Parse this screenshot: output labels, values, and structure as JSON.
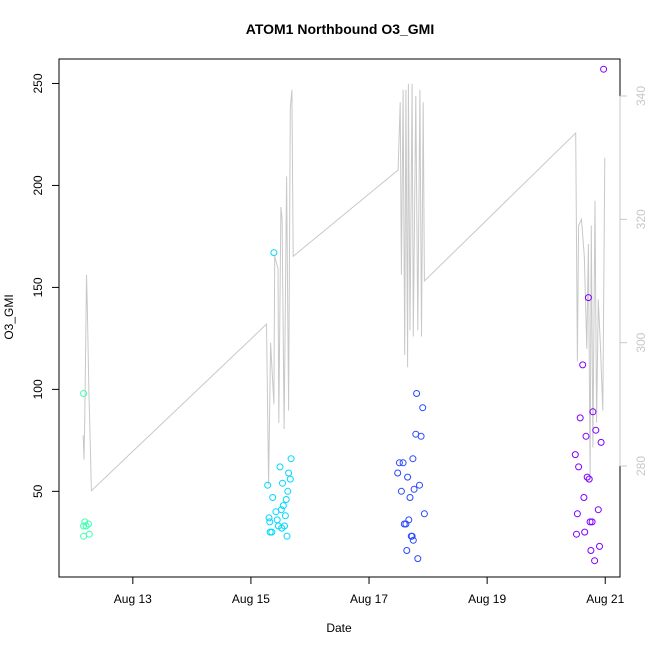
{
  "chart_data": {
    "type": "scatter",
    "title": "ATOM1 Northbound O3_GMI",
    "xlabel": "Date",
    "ylabel": "O3_GMI",
    "xlim": [
      "2016-08-11 18:00",
      "2016-08-21 06:00"
    ],
    "ylim": [
      8,
      262
    ],
    "x_ticks": [
      {
        "date": "2016-08-13",
        "label": "Aug 13"
      },
      {
        "date": "2016-08-15",
        "label": "Aug 15"
      },
      {
        "date": "2016-08-17",
        "label": "Aug 17"
      },
      {
        "date": "2016-08-19",
        "label": "Aug 19"
      },
      {
        "date": "2016-08-21",
        "label": "Aug 21"
      }
    ],
    "y_ticks": [
      50,
      100,
      150,
      200,
      250
    ],
    "y2lim": [
      262,
      346
    ],
    "y2_ticks": [
      280,
      300,
      320,
      340
    ],
    "y2_color": "#c8c8c8",
    "line_color": "#c8c8c8",
    "point_colors": [
      "#40ffb0",
      "#00d8ff",
      "#2848ff",
      "#8000ff"
    ],
    "line_series": [
      [
        "2016-08-12 03:50",
        285
      ],
      [
        "2016-08-12 04:10",
        281
      ],
      [
        "2016-08-12 04:30",
        288
      ],
      [
        "2016-08-12 04:50",
        300
      ],
      [
        "2016-08-12 05:10",
        311
      ],
      [
        "2016-08-12 05:30",
        306
      ],
      [
        "2016-08-12 06:10",
        292
      ],
      [
        "2016-08-12 06:40",
        284
      ],
      [
        "2016-08-12 07:10",
        276
      ],
      [
        "2016-08-15 06:20",
        303
      ],
      [
        "2016-08-15 07:10",
        277
      ],
      [
        "2016-08-15 08:00",
        300
      ],
      [
        "2016-08-15 09:20",
        290
      ],
      [
        "2016-08-15 09:40",
        314
      ],
      [
        "2016-08-15 11:00",
        312
      ],
      [
        "2016-08-15 11:20",
        287
      ],
      [
        "2016-08-15 12:10",
        322
      ],
      [
        "2016-08-15 12:40",
        320
      ],
      [
        "2016-08-15 13:30",
        286
      ],
      [
        "2016-08-15 14:30",
        327
      ],
      [
        "2016-08-15 15:20",
        289
      ],
      [
        "2016-08-15 16:00",
        338
      ],
      [
        "2016-08-15 16:40",
        341
      ],
      [
        "2016-08-15 17:10",
        314
      ],
      [
        "2016-08-17 11:50",
        328
      ],
      [
        "2016-08-17 12:40",
        339
      ],
      [
        "2016-08-17 13:10",
        311
      ],
      [
        "2016-08-17 13:50",
        341
      ],
      [
        "2016-08-17 14:30",
        298
      ],
      [
        "2016-08-17 15:00",
        341
      ],
      [
        "2016-08-17 15:40",
        296
      ],
      [
        "2016-08-17 16:00",
        342
      ],
      [
        "2016-08-17 16:40",
        302
      ],
      [
        "2016-08-17 17:30",
        342
      ],
      [
        "2016-08-17 18:00",
        301
      ],
      [
        "2016-08-17 19:00",
        340
      ],
      [
        "2016-08-17 19:50",
        302
      ],
      [
        "2016-08-17 20:40",
        341
      ],
      [
        "2016-08-17 21:20",
        301
      ],
      [
        "2016-08-17 22:00",
        339
      ],
      [
        "2016-08-17 22:30",
        310
      ],
      [
        "2016-08-20 12:00",
        334
      ],
      [
        "2016-08-20 12:40",
        297
      ],
      [
        "2016-08-20 13:10",
        319
      ],
      [
        "2016-08-20 14:20",
        320
      ],
      [
        "2016-08-20 15:30",
        314
      ],
      [
        "2016-08-20 16:30",
        299
      ],
      [
        "2016-08-20 17:10",
        316
      ],
      [
        "2016-08-20 17:50",
        278
      ],
      [
        "2016-08-20 18:20",
        319
      ],
      [
        "2016-08-20 19:00",
        283
      ],
      [
        "2016-08-20 19:50",
        323
      ],
      [
        "2016-08-20 20:30",
        287
      ],
      [
        "2016-08-20 21:10",
        307
      ],
      [
        "2016-08-20 22:00",
        300
      ],
      [
        "2016-08-20 23:00",
        289
      ],
      [
        "2016-08-20 23:50",
        330
      ]
    ],
    "point_series": [
      {
        "points": [
          [
            "2016-08-12 04:00",
            98
          ],
          [
            "2016-08-12 04:00",
            28
          ],
          [
            "2016-08-12 04:00",
            33
          ],
          [
            "2016-08-12 04:30",
            35
          ],
          [
            "2016-08-12 05:00",
            33
          ],
          [
            "2016-08-12 06:00",
            34
          ],
          [
            "2016-08-12 06:20",
            29
          ]
        ]
      },
      {
        "points": [
          [
            "2016-08-15 06:50",
            53
          ],
          [
            "2016-08-15 07:20",
            37
          ],
          [
            "2016-08-15 07:40",
            35
          ],
          [
            "2016-08-15 07:50",
            30
          ],
          [
            "2016-08-15 08:30",
            30
          ],
          [
            "2016-08-15 08:50",
            47
          ],
          [
            "2016-08-15 09:20",
            167
          ],
          [
            "2016-08-15 10:10",
            40
          ],
          [
            "2016-08-15 10:40",
            36
          ],
          [
            "2016-08-15 11:10",
            33
          ],
          [
            "2016-08-15 11:50",
            62
          ],
          [
            "2016-08-15 12:20",
            41
          ],
          [
            "2016-08-15 12:30",
            32
          ],
          [
            "2016-08-15 12:50",
            54
          ],
          [
            "2016-08-15 13:10",
            43
          ],
          [
            "2016-08-15 13:40",
            33
          ],
          [
            "2016-08-15 14:00",
            38
          ],
          [
            "2016-08-15 14:20",
            46
          ],
          [
            "2016-08-15 14:40",
            28
          ],
          [
            "2016-08-15 15:00",
            50
          ],
          [
            "2016-08-15 15:20",
            59
          ],
          [
            "2016-08-15 16:00",
            56
          ],
          [
            "2016-08-15 16:20",
            66
          ]
        ]
      },
      {
        "points": [
          [
            "2016-08-17 11:40",
            59
          ],
          [
            "2016-08-17 12:20",
            64
          ],
          [
            "2016-08-17 13:10",
            50
          ],
          [
            "2016-08-17 13:50",
            64
          ],
          [
            "2016-08-17 14:20",
            34
          ],
          [
            "2016-08-17 15:00",
            34
          ],
          [
            "2016-08-17 15:20",
            21
          ],
          [
            "2016-08-17 15:40",
            57
          ],
          [
            "2016-08-17 16:10",
            36
          ],
          [
            "2016-08-17 16:40",
            47
          ],
          [
            "2016-08-17 17:10",
            28
          ],
          [
            "2016-08-17 17:30",
            28
          ],
          [
            "2016-08-17 17:50",
            66
          ],
          [
            "2016-08-17 18:00",
            26
          ],
          [
            "2016-08-17 18:20",
            51
          ],
          [
            "2016-08-17 19:00",
            78
          ],
          [
            "2016-08-17 19:20",
            98
          ],
          [
            "2016-08-17 19:50",
            17
          ],
          [
            "2016-08-17 20:30",
            53
          ],
          [
            "2016-08-17 21:10",
            77
          ],
          [
            "2016-08-17 21:50",
            91
          ],
          [
            "2016-08-17 22:30",
            39
          ]
        ]
      },
      {
        "points": [
          [
            "2016-08-20 11:50",
            68
          ],
          [
            "2016-08-20 12:20",
            29
          ],
          [
            "2016-08-20 12:40",
            39
          ],
          [
            "2016-08-20 13:10",
            62
          ],
          [
            "2016-08-20 13:50",
            86
          ],
          [
            "2016-08-20 14:50",
            112
          ],
          [
            "2016-08-20 15:20",
            47
          ],
          [
            "2016-08-20 15:40",
            30
          ],
          [
            "2016-08-20 16:10",
            77
          ],
          [
            "2016-08-20 16:40",
            57
          ],
          [
            "2016-08-20 17:10",
            145
          ],
          [
            "2016-08-20 17:30",
            56
          ],
          [
            "2016-08-20 17:50",
            35
          ],
          [
            "2016-08-20 18:10",
            21
          ],
          [
            "2016-08-20 18:40",
            35
          ],
          [
            "2016-08-20 19:00",
            89
          ],
          [
            "2016-08-20 19:40",
            16
          ],
          [
            "2016-08-20 20:10",
            80
          ],
          [
            "2016-08-20 21:10",
            41
          ],
          [
            "2016-08-20 21:40",
            23
          ],
          [
            "2016-08-20 22:20",
            74
          ],
          [
            "2016-08-20 23:20",
            257
          ]
        ]
      }
    ]
  }
}
